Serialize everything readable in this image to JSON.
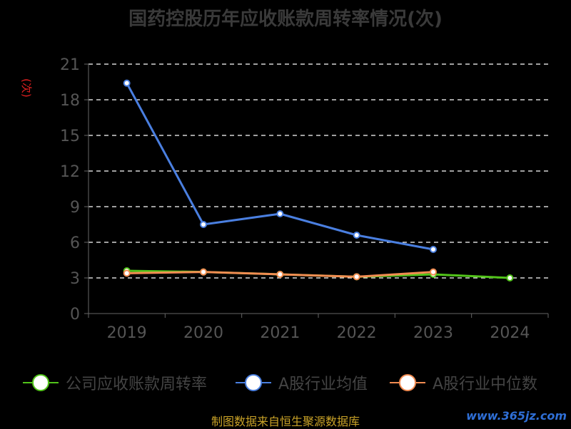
{
  "chart_data": {
    "type": "line",
    "title": "国药控股历年应收账款周转率情况(次)",
    "ylabel": "(次)",
    "categories": [
      "2019",
      "2020",
      "2021",
      "2022",
      "2023",
      "2024"
    ],
    "ylim": [
      0,
      21
    ],
    "yticks": [
      0,
      3,
      6,
      9,
      12,
      15,
      18,
      21
    ],
    "grid": true,
    "legend_position": "bottom",
    "series": [
      {
        "name": "公司应收账款周转率",
        "color": "#52c41a",
        "values": [
          3.6,
          3.5,
          3.3,
          3.1,
          3.3,
          3.0
        ]
      },
      {
        "name": "A股行业均值",
        "color": "#4a7fe0",
        "values": [
          19.4,
          7.5,
          8.4,
          6.6,
          5.4,
          null
        ]
      },
      {
        "name": "A股行业中位数",
        "color": "#f28c52",
        "values": [
          3.4,
          3.5,
          3.3,
          3.1,
          3.5,
          null
        ]
      }
    ]
  },
  "footer": {
    "source": "制图数据来自恒生聚源数据库",
    "watermark": "www.365jz.com"
  }
}
